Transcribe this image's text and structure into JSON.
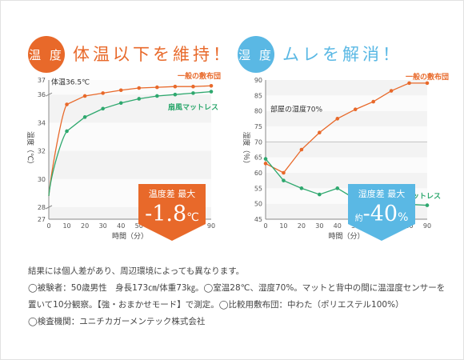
{
  "colors": {
    "orange": "#e8692a",
    "orange_light": "#f0a06e",
    "green": "#2ea86e",
    "blue": "#5ab8e4",
    "blue_light": "#a6d8f0"
  },
  "left": {
    "badge": "温 度",
    "headline": "体温以下を維持！",
    "callout": {
      "title": "温度差 最大",
      "prefix": "",
      "value": "-1.8",
      "unit": "℃"
    }
  },
  "right": {
    "badge": "湿 度",
    "headline": "ムレを解消！",
    "callout": {
      "title": "湿度差 最大",
      "prefix": "約",
      "value": "-40",
      "unit": "%"
    }
  },
  "chart_data": [
    {
      "type": "line",
      "xlabel": "時間（分）",
      "ylabel": "温度（℃）",
      "x": [
        0,
        10,
        20,
        30,
        40,
        50,
        60,
        70,
        80,
        90
      ],
      "xlim": [
        0,
        90
      ],
      "ylim": [
        27,
        37
      ],
      "y_axis_breaks": true,
      "yticks": [
        27,
        28,
        30,
        32,
        34,
        36,
        37
      ],
      "xticks": [
        0,
        10,
        20,
        30,
        40,
        50,
        60,
        70,
        80,
        90
      ],
      "grid": "horizontal bands",
      "annotation": "体温36.5℃",
      "series": [
        {
          "name": "一般の敷布団",
          "color": "#e8692a",
          "values": [
            28.8,
            35.3,
            35.9,
            36.1,
            36.3,
            36.45,
            36.5,
            36.55,
            36.55,
            36.6
          ]
        },
        {
          "name": "扇風マットレス",
          "color": "#2ea86e",
          "values": [
            28.8,
            33.4,
            34.4,
            35.0,
            35.4,
            35.7,
            35.9,
            36.0,
            36.1,
            36.2
          ]
        }
      ]
    },
    {
      "type": "line",
      "xlabel": "時間（分）",
      "ylabel": "湿度（％）",
      "x": [
        0,
        10,
        20,
        30,
        40,
        50,
        60,
        70,
        80,
        90
      ],
      "xlim": [
        0,
        90
      ],
      "ylim": [
        45,
        90
      ],
      "yticks": [
        45,
        50,
        55,
        60,
        65,
        70,
        75,
        80,
        85,
        90
      ],
      "xticks": [
        0,
        10,
        20,
        30,
        40,
        50,
        60,
        70,
        80,
        90
      ],
      "grid": "horizontal bands",
      "reference_line": {
        "y": 70,
        "label": "部屋の湿度70%"
      },
      "series": [
        {
          "name": "一般の敷布団",
          "color": "#e8692a",
          "values": [
            63,
            60,
            67.5,
            73,
            77.5,
            80.5,
            83,
            86.5,
            89,
            89
          ]
        },
        {
          "name": "扇風マットレス",
          "color": "#2ea86e",
          "values": [
            64.5,
            57.5,
            55,
            53,
            55,
            51.5,
            50.5,
            53,
            49.8,
            49.5
          ]
        }
      ]
    }
  ],
  "notes": [
    "結果には個人差があり、周辺環境によっても異なります。",
    "◯被験者：50歳男性　身長173㎝/体重73㎏。◯室温28℃、湿度70%。マットと背中の間に温湿度センサーを",
    "置いて10分観察。【強・おまかせモード】で測定。◯比較用敷布団：中わた（ポリエステル100%）",
    "◯検査機関：ユニチカガーメンテック株式会社"
  ]
}
